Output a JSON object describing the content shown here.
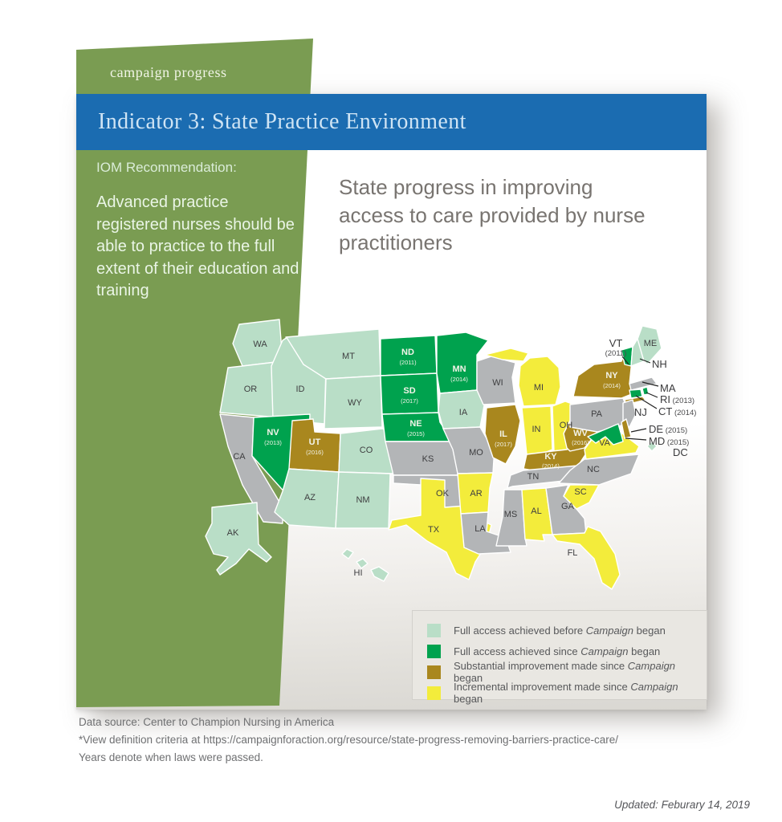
{
  "header": {
    "tab": "campaign progress",
    "title": "Indicator 3: State Practice Environment"
  },
  "sidebar": {
    "heading": "IOM Recommendation:",
    "body": "Advanced practice registered nurses should be able to practice to the full extent of their education and training"
  },
  "main": {
    "title": "State progress in improving access to care provided by nurse practitioners"
  },
  "colors": {
    "full_before": "#b9dec7",
    "full_since": "#00a24e",
    "substantial": "#a9871e",
    "incremental": "#f3ec3b",
    "none": "#b3b5b7",
    "sidebar_green": "#7a9c52",
    "banner_blue": "#1b6cb1",
    "label_dark": "#3e3e40",
    "label_light": "#f2f3e8"
  },
  "legend": {
    "items": [
      {
        "category": "full_before",
        "pre": "Full access achieved before ",
        "em": "Campaign",
        "post": " began"
      },
      {
        "category": "full_since",
        "pre": "Full access achieved since ",
        "em": "Campaign",
        "post": " began"
      },
      {
        "category": "substantial",
        "pre": "Substantial improvement made since ",
        "em": "Campaign",
        "post": " began"
      },
      {
        "category": "incremental",
        "pre": "Incremental improvement made since ",
        "em": "Campaign",
        "post": " began"
      }
    ]
  },
  "map": {
    "states": [
      {
        "id": "WA",
        "category": "full_before",
        "year": null
      },
      {
        "id": "OR",
        "category": "full_before",
        "year": null
      },
      {
        "id": "CA",
        "category": "none",
        "year": null
      },
      {
        "id": "ID",
        "category": "full_before",
        "year": null
      },
      {
        "id": "NV",
        "category": "full_since",
        "year": "2013"
      },
      {
        "id": "MT",
        "category": "full_before",
        "year": null
      },
      {
        "id": "WY",
        "category": "full_before",
        "year": null
      },
      {
        "id": "UT",
        "category": "substantial",
        "year": "2016"
      },
      {
        "id": "CO",
        "category": "full_before",
        "year": null
      },
      {
        "id": "AZ",
        "category": "full_before",
        "year": null
      },
      {
        "id": "NM",
        "category": "full_before",
        "year": null
      },
      {
        "id": "ND",
        "category": "full_since",
        "year": "2011"
      },
      {
        "id": "SD",
        "category": "full_since",
        "year": "2017"
      },
      {
        "id": "NE",
        "category": "full_since",
        "year": "2015"
      },
      {
        "id": "KS",
        "category": "none",
        "year": null
      },
      {
        "id": "OK",
        "category": "none",
        "year": null
      },
      {
        "id": "TX",
        "category": "incremental",
        "year": null
      },
      {
        "id": "MN",
        "category": "full_since",
        "year": "2014"
      },
      {
        "id": "IA",
        "category": "full_before",
        "year": null
      },
      {
        "id": "MO",
        "category": "none",
        "year": null
      },
      {
        "id": "AR",
        "category": "incremental",
        "year": null
      },
      {
        "id": "LA",
        "category": "none",
        "year": null
      },
      {
        "id": "WI",
        "category": "none",
        "year": null
      },
      {
        "id": "IL",
        "category": "substantial",
        "year": "2017"
      },
      {
        "id": "MS",
        "category": "none",
        "year": null
      },
      {
        "id": "MI",
        "category": "incremental",
        "year": null
      },
      {
        "id": "IN",
        "category": "incremental",
        "year": null
      },
      {
        "id": "OH",
        "category": "incremental",
        "year": null
      },
      {
        "id": "KY",
        "category": "substantial",
        "year": "2014"
      },
      {
        "id": "TN",
        "category": "none",
        "year": null
      },
      {
        "id": "AL",
        "category": "incremental",
        "year": null
      },
      {
        "id": "GA",
        "category": "none",
        "year": null
      },
      {
        "id": "FL",
        "category": "incremental",
        "year": null
      },
      {
        "id": "SC",
        "category": "incremental",
        "year": null
      },
      {
        "id": "NC",
        "category": "none",
        "year": null
      },
      {
        "id": "VA",
        "category": "incremental",
        "year": null
      },
      {
        "id": "WV",
        "category": "substantial",
        "year": "2016"
      },
      {
        "id": "PA",
        "category": "none",
        "year": null
      },
      {
        "id": "NY",
        "category": "substantial",
        "year": "2014"
      },
      {
        "id": "ME",
        "category": "full_before",
        "year": null
      },
      {
        "id": "VT",
        "category": "full_since",
        "year": "2011"
      },
      {
        "id": "NH",
        "category": "full_before",
        "year": null
      },
      {
        "id": "MA",
        "category": "none",
        "year": null
      },
      {
        "id": "RI",
        "category": "full_since",
        "year": "2013"
      },
      {
        "id": "CT",
        "category": "full_since",
        "year": "2014"
      },
      {
        "id": "NJ",
        "category": "none",
        "year": null
      },
      {
        "id": "DE",
        "category": "substantial",
        "year": "2015"
      },
      {
        "id": "MD",
        "category": "full_since",
        "year": "2015"
      },
      {
        "id": "DC",
        "category": "full_before",
        "year": null
      },
      {
        "id": "AK",
        "category": "full_before",
        "year": null
      },
      {
        "id": "HI",
        "category": "full_before",
        "year": null
      }
    ],
    "callouts": [
      "VT",
      "NH",
      "MA",
      "RI",
      "CT",
      "NJ",
      "DE",
      "MD",
      "DC"
    ]
  },
  "footer": {
    "lines": [
      "Data source: Center to Champion Nursing in America",
      "*View definition criteria at https://campaignforaction.org/resource/state-progress-removing-barriers-practice-care/",
      "Years denote when laws were passed."
    ]
  },
  "updated": "Updated: Feburary 14, 2019"
}
